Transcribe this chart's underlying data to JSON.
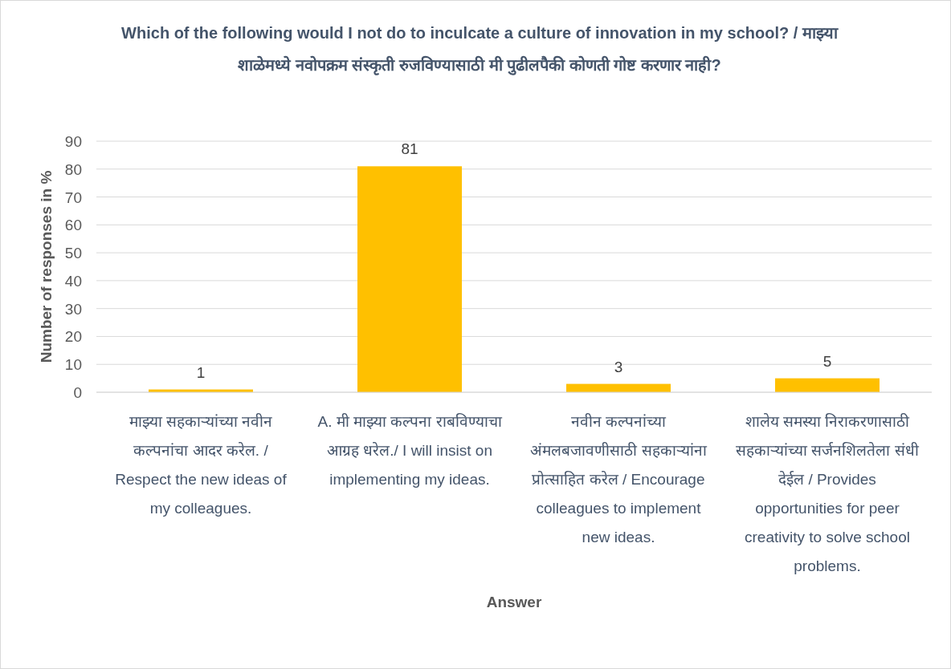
{
  "chart_data": {
    "type": "bar",
    "title": "Which of the following would I not do to inculcate a culture of innovation in my school? / माझ्या शाळेमध्ये नवोपक्रम संस्कृती रुजविण्यासाठी मी पुढीलपैकी कोणती गोष्ट करणार नाही?",
    "xlabel": "Answer",
    "ylabel": "Number of responses in %",
    "categories": [
      "माझ्या सहकाऱ्यांच्या नवीन कल्पनांचा आदर करेल.  /  Respect the new ideas of my colleagues.",
      "A. मी माझ्या कल्पना राबविण्याचा आग्रह धरेल./ I will insist on implementing my ideas.",
      "नवीन कल्पनांच्या अंमलबजावणीसाठी सहकाऱ्यांना प्रोत्साहित करेल  /  Encourage colleagues to implement new ideas.",
      "शालेय समस्या निराकरणासाठी सहकाऱ्यांच्या सर्जनशिलतेला संधी देईल  /  Provides opportunities for peer creativity to solve school problems."
    ],
    "values": [
      1,
      81,
      3,
      5
    ],
    "color": "#ffc000",
    "data_labels": true,
    "ylim": [
      0,
      90
    ],
    "yticks": [
      0,
      10,
      20,
      30,
      40,
      50,
      60,
      70,
      80,
      90
    ],
    "grid": "y"
  }
}
